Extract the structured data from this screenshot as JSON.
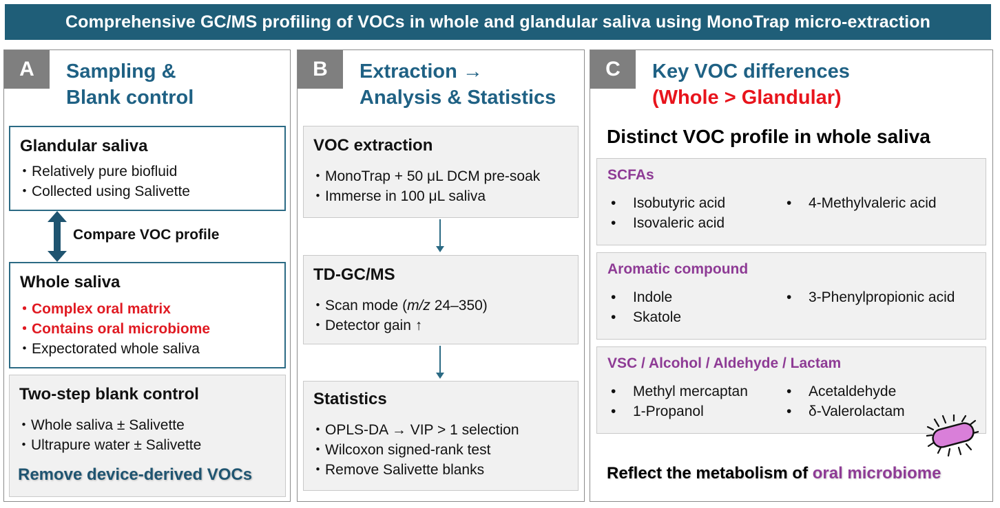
{
  "banner": "Comprehensive GC/MS profiling of VOCs in whole and glandular saliva using MonoTrap micro-extraction",
  "panel_a": {
    "letter": "A",
    "title_line1": "Sampling &",
    "title_line2": "Blank control",
    "glandular": {
      "title": "Glandular saliva",
      "items": [
        "Relatively pure biofluid",
        "Collected using Salivette"
      ]
    },
    "compare": "Compare VOC profile",
    "whole": {
      "title": "Whole saliva",
      "items": [
        "Complex oral matrix",
        "Contains oral microbiome",
        "Expectorated whole saliva"
      ]
    },
    "blank": {
      "title": "Two-step blank control",
      "items": [
        "Whole saliva ± Salivette",
        "Ultrapure water ± Salivette"
      ]
    },
    "remove": "Remove device-derived VOCs"
  },
  "panel_b": {
    "letter": "B",
    "title_line1": "Extraction →",
    "title_line2": "Analysis & Statistics",
    "extraction": {
      "title": "VOC extraction",
      "items": [
        "MonoTrap + 50 μL DCM pre-soak",
        "Immerse in 100 μL saliva"
      ]
    },
    "gcms": {
      "title": "TD-GC/MS",
      "scan_prefix": "Scan mode (",
      "scan_mz": "m/z",
      "scan_suffix": " 24–350)",
      "gain": "Detector gain ↑"
    },
    "statistics": {
      "title": "Statistics",
      "items": [
        "OPLS-DA → VIP > 1 selection",
        "Wilcoxon signed-rank test",
        "Remove Salivette blanks"
      ]
    }
  },
  "panel_c": {
    "letter": "C",
    "title_line1": "Key VOC differences",
    "title_line2": "(Whole > Glandular)",
    "heading": "Distinct VOC profile in whole saliva",
    "groups": [
      {
        "name": "SCFAs",
        "left": [
          "Isobutyric acid",
          "Isovaleric acid"
        ],
        "right": [
          "4-Methylvaleric acid"
        ]
      },
      {
        "name": "Aromatic compound",
        "left": [
          "Indole",
          "Skatole"
        ],
        "right": [
          "3-Phenylpropionic acid"
        ]
      },
      {
        "name": "VSC / Alcohol / Aldehyde / Lactam",
        "left": [
          "Methyl mercaptan",
          "1-Propanol"
        ],
        "right": [
          "Acetaldehyde",
          "δ-Valerolactam"
        ]
      }
    ],
    "reflect_prefix": "Reflect the metabolism of ",
    "reflect_highlight": "oral microbiome"
  },
  "colors": {
    "banner": "#1f5e78",
    "title_blue": "#1f6184",
    "highlight_red": "#e01a22",
    "category_purple": "#8e3b95",
    "microbe_fill": "#d97fd9"
  },
  "icons": [
    "double-arrow-icon",
    "down-arrow-icon",
    "bacterium-icon"
  ]
}
